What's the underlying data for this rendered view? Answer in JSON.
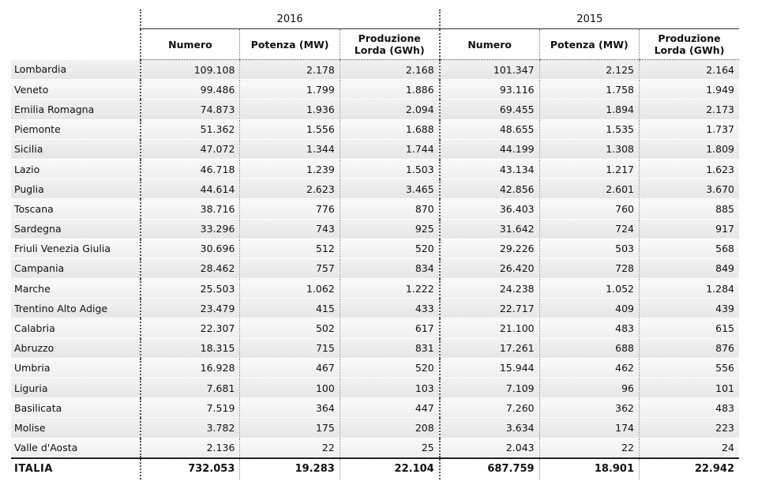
{
  "years": [
    "2016",
    "2015"
  ],
  "columns": [
    "Numero",
    "Potenza (MW)",
    "Produzione Lorda (GWh)"
  ],
  "rows": [
    {
      "region": "Lombardia",
      "v": [
        "109.108",
        "2.178",
        "2.168",
        "101.347",
        "2.125",
        "2.164"
      ]
    },
    {
      "region": "Veneto",
      "v": [
        "99.486",
        "1.799",
        "1.886",
        "93.116",
        "1.758",
        "1.949"
      ]
    },
    {
      "region": "Emilia Romagna",
      "v": [
        "74.873",
        "1.936",
        "2.094",
        "69.455",
        "1.894",
        "2.173"
      ]
    },
    {
      "region": "Piemonte",
      "v": [
        "51.362",
        "1.556",
        "1.688",
        "48.655",
        "1.535",
        "1.737"
      ]
    },
    {
      "region": "Sicilia",
      "v": [
        "47.072",
        "1.344",
        "1.744",
        "44.199",
        "1.308",
        "1.809"
      ]
    },
    {
      "region": "Lazio",
      "v": [
        "46.718",
        "1.239",
        "1.503",
        "43.134",
        "1.217",
        "1.623"
      ]
    },
    {
      "region": "Puglia",
      "v": [
        "44.614",
        "2.623",
        "3.465",
        "42.856",
        "2.601",
        "3.670"
      ]
    },
    {
      "region": "Toscana",
      "v": [
        "38.716",
        "776",
        "870",
        "36.403",
        "760",
        "885"
      ]
    },
    {
      "region": "Sardegna",
      "v": [
        "33.296",
        "743",
        "925",
        "31.642",
        "724",
        "917"
      ]
    },
    {
      "region": "Friuli Venezia Giulia",
      "v": [
        "30.696",
        "512",
        "520",
        "29.226",
        "503",
        "568"
      ]
    },
    {
      "region": "Campania",
      "v": [
        "28.462",
        "757",
        "834",
        "26.420",
        "728",
        "849"
      ]
    },
    {
      "region": "Marche",
      "v": [
        "25.503",
        "1.062",
        "1.222",
        "24.238",
        "1.052",
        "1.284"
      ]
    },
    {
      "region": "Trentino Alto Adige",
      "v": [
        "23.479",
        "415",
        "433",
        "22.717",
        "409",
        "439"
      ]
    },
    {
      "region": "Calabria",
      "v": [
        "22.307",
        "502",
        "617",
        "21.100",
        "483",
        "615"
      ]
    },
    {
      "region": "Abruzzo",
      "v": [
        "18.315",
        "715",
        "831",
        "17.261",
        "688",
        "876"
      ]
    },
    {
      "region": "Umbria",
      "v": [
        "16.928",
        "467",
        "520",
        "15.944",
        "462",
        "556"
      ]
    },
    {
      "region": "Liguria",
      "v": [
        "7.681",
        "100",
        "103",
        "7.109",
        "96",
        "101"
      ]
    },
    {
      "region": "Basilicata",
      "v": [
        "7.519",
        "364",
        "447",
        "7.260",
        "362",
        "483"
      ]
    },
    {
      "region": "Molise",
      "v": [
        "3.782",
        "175",
        "208",
        "3.634",
        "174",
        "223"
      ]
    },
    {
      "region": "Valle d'Aosta",
      "v": [
        "2.136",
        "22",
        "25",
        "2.043",
        "22",
        "24"
      ]
    }
  ],
  "total": {
    "region": "ITALIA",
    "v": [
      "732.053",
      "19.283",
      "22.104",
      "687.759",
      "18.901",
      "22.942"
    ]
  }
}
